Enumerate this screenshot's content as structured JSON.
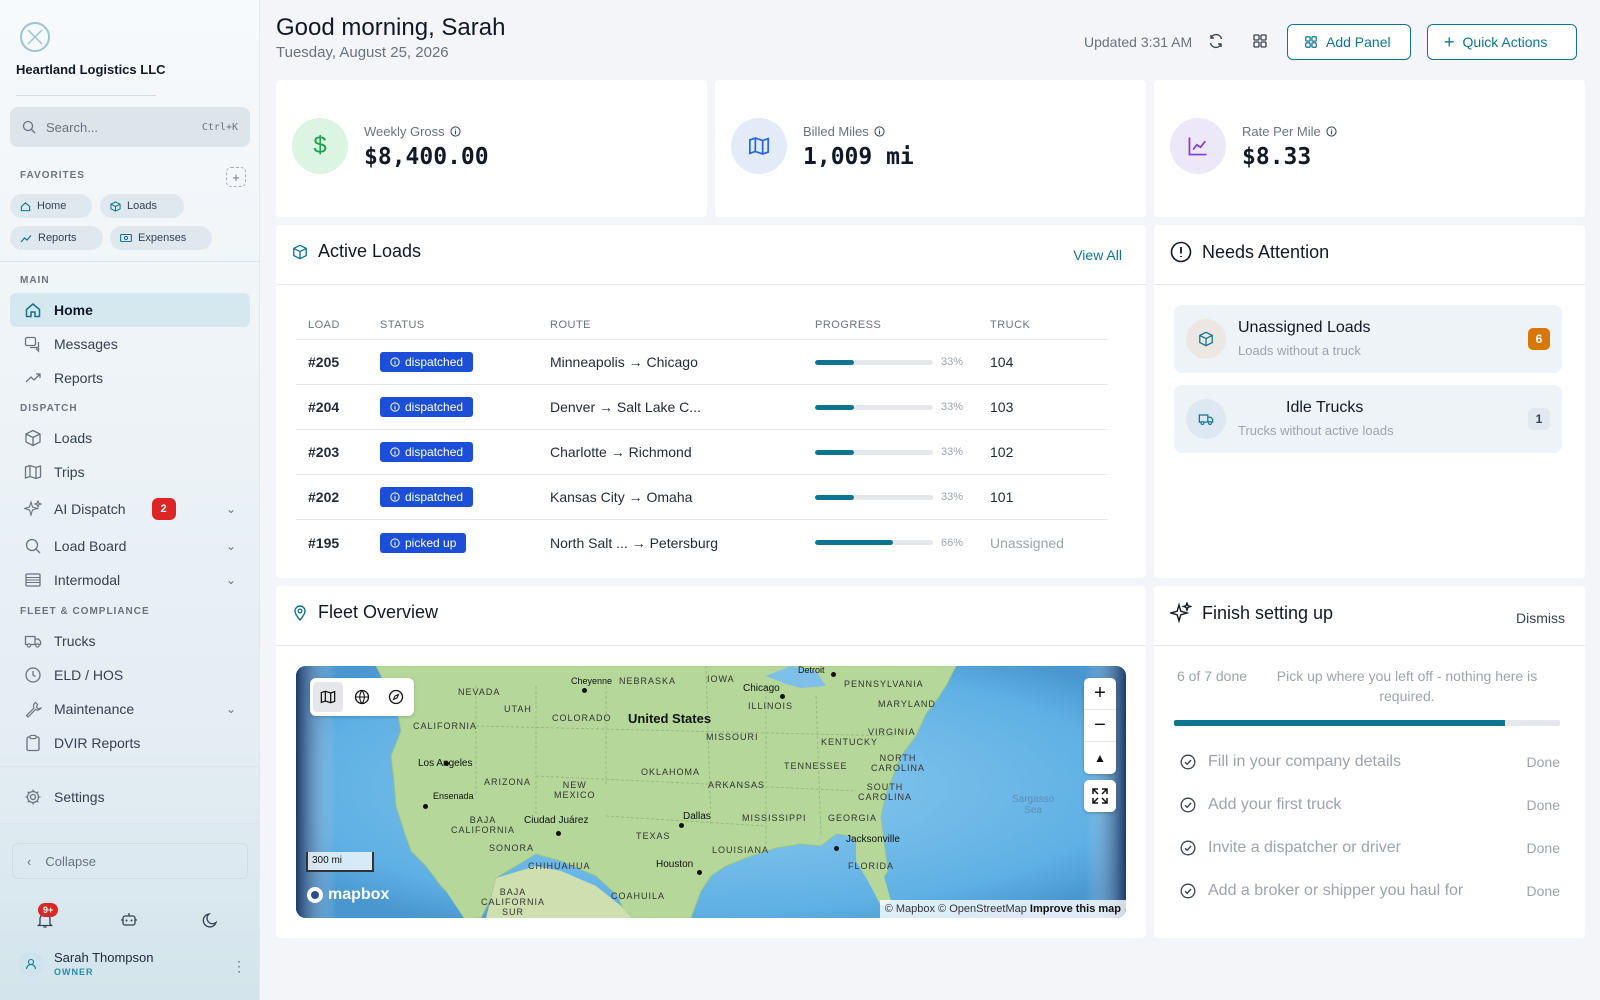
{
  "sidebar": {
    "brand": "Heartland Logistics LLC",
    "search": {
      "placeholder": "Search...",
      "shortcut": "Ctrl+K"
    },
    "favorites_label": "FAVORITES",
    "favorites": [
      {
        "label": "Home",
        "icon": "home-icon"
      },
      {
        "label": "Loads",
        "icon": "box-icon"
      },
      {
        "label": "Reports",
        "icon": "trend-icon"
      },
      {
        "label": "Expenses",
        "icon": "cash-icon"
      }
    ],
    "sections": {
      "main": "MAIN",
      "dispatch": "DISPATCH",
      "fleet": "FLEET & COMPLIANCE"
    },
    "main_items": [
      {
        "label": "Home",
        "active": true
      },
      {
        "label": "Messages"
      },
      {
        "label": "Reports"
      }
    ],
    "dispatch_items": [
      {
        "label": "Loads"
      },
      {
        "label": "Trips"
      },
      {
        "label": "AI Dispatch",
        "badge": "2"
      },
      {
        "label": "Load Board"
      },
      {
        "label": "Intermodal"
      }
    ],
    "fleet_items": [
      {
        "label": "Trucks"
      },
      {
        "label": "ELD / HOS"
      },
      {
        "label": "Maintenance"
      },
      {
        "label": "DVIR Reports"
      }
    ],
    "settings": "Settings",
    "collapse": "Collapse",
    "notifications_badge": "9+",
    "user": {
      "name": "Sarah Thompson",
      "role": "OWNER"
    }
  },
  "header": {
    "greeting": "Good morning, Sarah",
    "date": "Tuesday, August 25, 2026",
    "updated": "Updated 3:31 AM",
    "add_panel": "Add Panel",
    "quick_actions": "Quick Actions"
  },
  "stats": [
    {
      "label": "Weekly Gross",
      "value": "$8,400.00",
      "icon": "dollar-icon",
      "color": "#dcf5e3"
    },
    {
      "label": "Billed Miles",
      "value": "1,009 mi",
      "icon": "map-icon",
      "color": "#e3ebf8"
    },
    {
      "label": "Rate Per Mile",
      "value": "$8.33",
      "icon": "chart-line-icon",
      "color": "#ece8fa"
    }
  ],
  "active_loads": {
    "title": "Active Loads",
    "view_all": "View All",
    "columns": [
      "LOAD",
      "STATUS",
      "ROUTE",
      "PROGRESS",
      "TRUCK"
    ],
    "rows": [
      {
        "load": "#205",
        "status": "dispatched",
        "from": "Minneapolis",
        "to": "Chicago",
        "progress": 33,
        "progress_label": "33%",
        "truck": "104"
      },
      {
        "load": "#204",
        "status": "dispatched",
        "from": "Denver",
        "to": "Salt Lake C...",
        "progress": 33,
        "progress_label": "33%",
        "truck": "103"
      },
      {
        "load": "#203",
        "status": "dispatched",
        "from": "Charlotte",
        "to": "Richmond",
        "progress": 33,
        "progress_label": "33%",
        "truck": "102"
      },
      {
        "load": "#202",
        "status": "dispatched",
        "from": "Kansas City",
        "to": "Omaha",
        "progress": 33,
        "progress_label": "33%",
        "truck": "101"
      },
      {
        "load": "#195",
        "status": "picked up",
        "from": "North Salt ...",
        "to": "Petersburg",
        "progress": 66,
        "progress_label": "66%",
        "truck": "Unassigned"
      }
    ]
  },
  "needs_attention": {
    "title": "Needs Attention",
    "items": [
      {
        "title": "Unassigned Loads",
        "sub": "Loads without a truck",
        "count": "6",
        "count_bg": "#d97706",
        "count_fg": "#ffffff"
      },
      {
        "title": "Idle Trucks",
        "sub": "Trucks without active loads",
        "count": "1",
        "count_bg": "#e2e8f0",
        "count_fg": "#374151"
      }
    ]
  },
  "fleet": {
    "title": "Fleet Overview",
    "scale": "300 mi",
    "logo": "mapbox",
    "attribution": "© Mapbox © OpenStreetMap",
    "improve": "Improve this map",
    "labels": [
      {
        "text": "United States",
        "bold": true
      },
      {
        "text": "Chicago"
      },
      {
        "text": "Los Angeles"
      },
      {
        "text": "Dallas"
      },
      {
        "text": "Houston"
      },
      {
        "text": "Ciudad Juárez"
      },
      {
        "text": "Jacksonville"
      },
      {
        "text": "Ensenada"
      },
      {
        "text": "Cheyenne"
      },
      {
        "text": "NEVADA"
      },
      {
        "text": "UTAH"
      },
      {
        "text": "COLORADO"
      },
      {
        "text": "NEBRASKA"
      },
      {
        "text": "IOWA"
      },
      {
        "text": "ILLINOIS"
      },
      {
        "text": "MISSOURI"
      },
      {
        "text": "KENTUCKY"
      },
      {
        "text": "VIRGINIA"
      },
      {
        "text": "PENNSYLVANIA"
      },
      {
        "text": "MARYLAND"
      },
      {
        "text": "CALIFORNIA"
      },
      {
        "text": "ARIZONA"
      },
      {
        "text": "NEW MEXICO"
      },
      {
        "text": "OKLAHOMA"
      },
      {
        "text": "ARKANSAS"
      },
      {
        "text": "TENNESSEE"
      },
      {
        "text": "NORTH CAROLINA"
      },
      {
        "text": "SOUTH CAROLINA"
      },
      {
        "text": "GEORGIA"
      },
      {
        "text": "MISSISSIPPI"
      },
      {
        "text": "TEXAS"
      },
      {
        "text": "LOUISIANA"
      },
      {
        "text": "FLORIDA"
      },
      {
        "text": "SONORA"
      },
      {
        "text": "CHIHUAHUA"
      },
      {
        "text": "COAHUILA"
      },
      {
        "text": "BAJA CALIFORNIA"
      },
      {
        "text": "BAJA CALIFORNIA SUR"
      },
      {
        "text": "Sargasso Sea"
      },
      {
        "text": "Detroit"
      }
    ]
  },
  "setup": {
    "title": "Finish setting up",
    "dismiss": "Dismiss",
    "count": "6 of 7 done",
    "message": "Pick up where you left off - nothing here is required.",
    "progress": 0.857,
    "items": [
      {
        "label": "Fill in your company details",
        "status": "Done"
      },
      {
        "label": "Add your first truck",
        "status": "Done"
      },
      {
        "label": "Invite a dispatcher or driver",
        "status": "Done"
      },
      {
        "label": "Add a broker or shipper you haul for",
        "status": "Done"
      }
    ]
  }
}
